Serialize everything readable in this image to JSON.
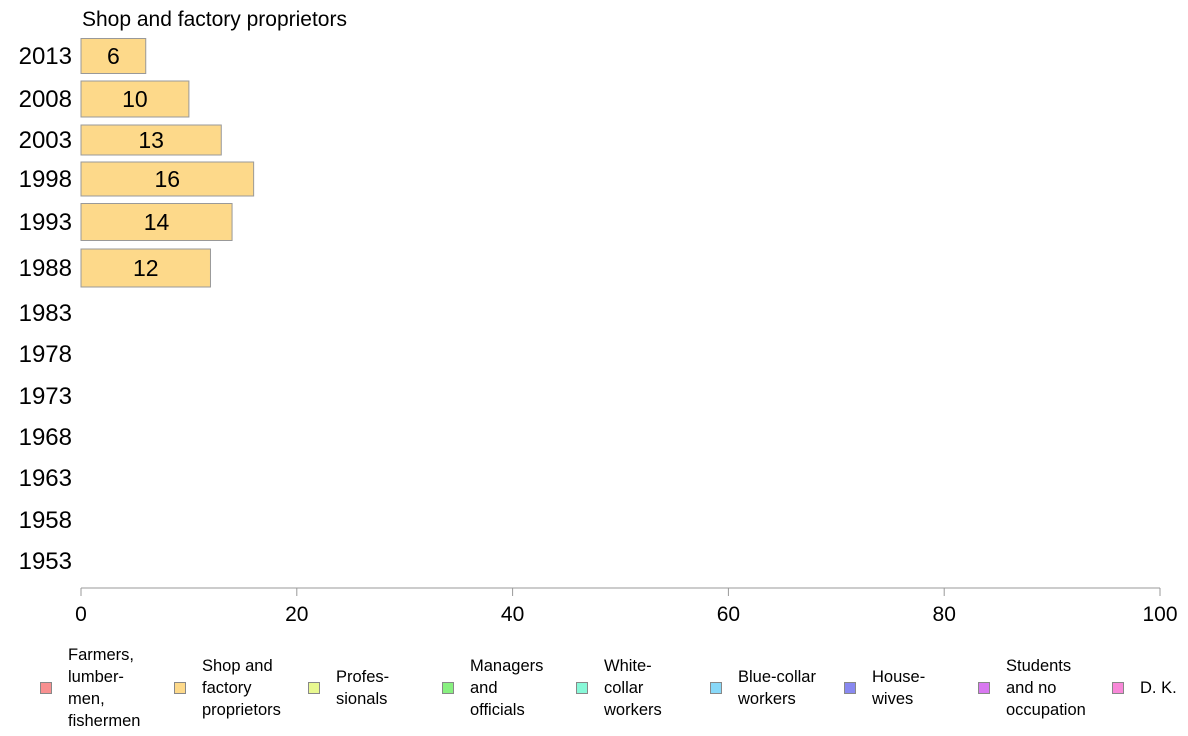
{
  "chart_data": {
    "type": "bar",
    "orientation": "horizontal",
    "title": "Shop and factory proprietors",
    "categories": [
      "2013",
      "2008",
      "2003",
      "1998",
      "1993",
      "1988",
      "1983",
      "1978",
      "1973",
      "1968",
      "1963",
      "1958",
      "1953"
    ],
    "series": [
      {
        "name": "Shop and factory proprietors",
        "values": [
          6,
          10,
          13,
          16,
          14,
          12,
          null,
          null,
          null,
          null,
          null,
          null,
          null
        ]
      }
    ],
    "data_labels": [
      "6",
      "10",
      "13",
      "16",
      "14",
      "12",
      "",
      "",
      "",
      "",
      "",
      "",
      ""
    ],
    "xlim": [
      0,
      100
    ],
    "xticks": [
      "0",
      "20",
      "40",
      "60",
      "80",
      "100"
    ],
    "xlabel": "",
    "ylabel": "",
    "grid": false,
    "bar_color": "#fdd98a",
    "legend_position": "bottom",
    "legend": [
      {
        "label": "Farmers,\nlumber-\nmen,\nfishermen",
        "color": "#f89090"
      },
      {
        "label": "Shop and\nfactory\nproprietors",
        "color": "#fdd98a"
      },
      {
        "label": "Profes-\nsionals",
        "color": "#e8f890"
      },
      {
        "label": "Managers\nand\nofficials",
        "color": "#88f080"
      },
      {
        "label": "White-\ncollar\nworkers",
        "color": "#88f8d8"
      },
      {
        "label": "Blue-collar\nworkers",
        "color": "#88d8f8"
      },
      {
        "label": "House-\nwives",
        "color": "#8888f0"
      },
      {
        "label": "Students\nand no\noccupation",
        "color": "#d878f0"
      },
      {
        "label": "D. K.",
        "color": "#f888d8"
      }
    ]
  }
}
